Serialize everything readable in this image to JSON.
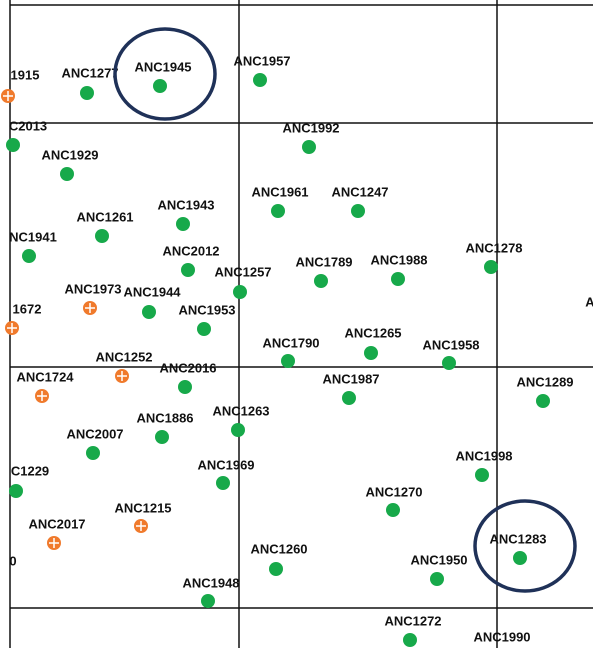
{
  "colors": {
    "green": "#17a94a",
    "orange": "#f07a2c",
    "highlight": "#1f3158"
  },
  "points": [
    {
      "label": "1915",
      "kind": "orange"
    },
    {
      "label": "ANC1277",
      "kind": "green"
    },
    {
      "label": "ANC1945",
      "kind": "green",
      "highlight": true
    },
    {
      "label": "ANC1957",
      "kind": "green"
    },
    {
      "label": "C2013",
      "kind": "green"
    },
    {
      "label": "ANC1992",
      "kind": "green"
    },
    {
      "label": "ANC1929",
      "kind": "green"
    },
    {
      "label": "ANC1961",
      "kind": "green"
    },
    {
      "label": "ANC1247",
      "kind": "green"
    },
    {
      "label": "ANC1943",
      "kind": "green"
    },
    {
      "label": "ANC1261",
      "kind": "green"
    },
    {
      "label": "NC1941",
      "kind": "green"
    },
    {
      "label": "ANC2012",
      "kind": "green"
    },
    {
      "label": "ANC1278",
      "kind": "green"
    },
    {
      "label": "ANC1789",
      "kind": "green"
    },
    {
      "label": "ANC1988",
      "kind": "green"
    },
    {
      "label": "ANC1257",
      "kind": "green"
    },
    {
      "label": "ANC1973",
      "kind": "orange"
    },
    {
      "label": "ANC1944",
      "kind": "green"
    },
    {
      "label": "1672",
      "kind": "orange"
    },
    {
      "label": "ANC1953",
      "kind": "green"
    },
    {
      "label": "ANC1790",
      "kind": "green"
    },
    {
      "label": "ANC1265",
      "kind": "green"
    },
    {
      "label": "ANC1958",
      "kind": "green"
    },
    {
      "label": "ANC1252",
      "kind": "orange"
    },
    {
      "label": "ANC2016",
      "kind": "green"
    },
    {
      "label": "ANC1724",
      "kind": "orange"
    },
    {
      "label": "ANC1987",
      "kind": "green"
    },
    {
      "label": "ANC1289",
      "kind": "green"
    },
    {
      "label": "ANC1886",
      "kind": "green"
    },
    {
      "label": "ANC1263",
      "kind": "green"
    },
    {
      "label": "ANC2007",
      "kind": "green"
    },
    {
      "label": "ANC1998",
      "kind": "green"
    },
    {
      "label": "ANC1969",
      "kind": "green"
    },
    {
      "label": "C1229",
      "kind": "green"
    },
    {
      "label": "ANC1270",
      "kind": "green"
    },
    {
      "label": "ANC1215",
      "kind": "orange"
    },
    {
      "label": "ANC2017",
      "kind": "orange"
    },
    {
      "label": "ANC1283",
      "kind": "green",
      "highlight": true
    },
    {
      "label": "0"
    },
    {
      "label": "ANC1260",
      "kind": "green"
    },
    {
      "label": "ANC1950",
      "kind": "green"
    },
    {
      "label": "ANC1948",
      "kind": "green"
    },
    {
      "label": "ANC1272",
      "kind": "green"
    },
    {
      "label": "ANC1990"
    },
    {
      "label": "A"
    }
  ]
}
